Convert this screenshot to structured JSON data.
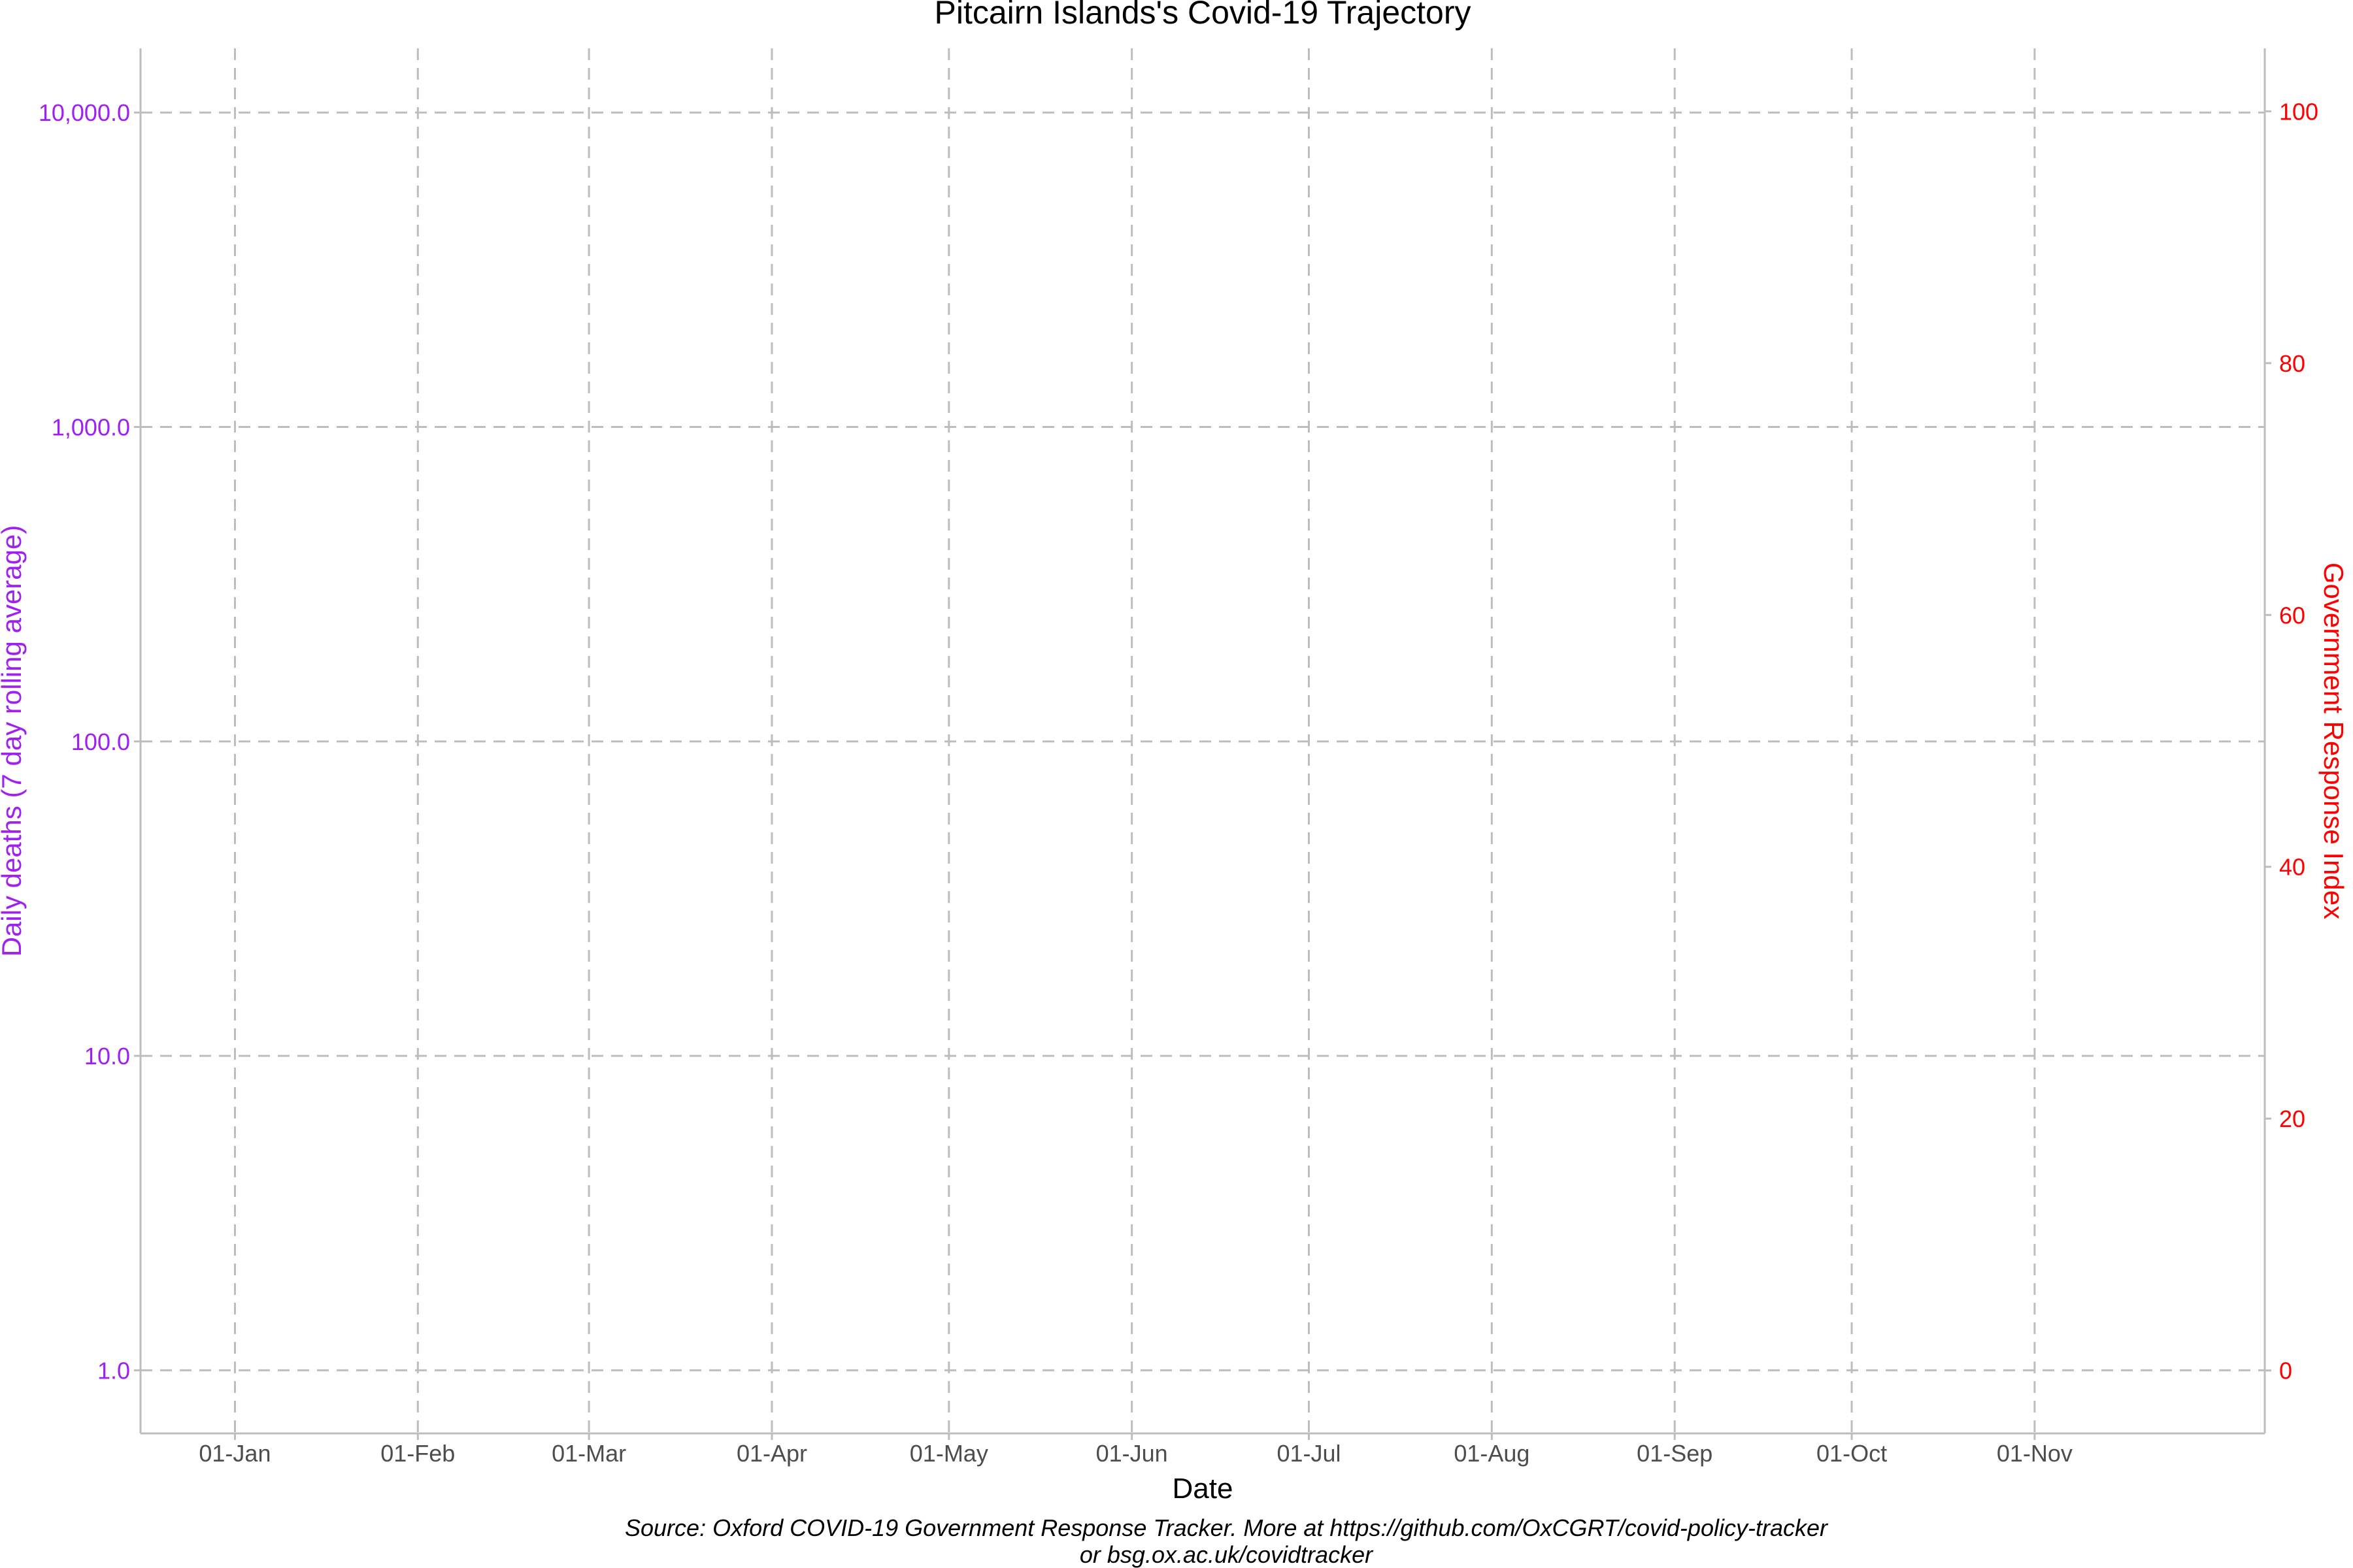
{
  "chart_data": {
    "type": "line",
    "title": "Pitcairn Islands's Covid-19 Trajectory",
    "xlabel": "Date",
    "ylabel_left": "Daily deaths (7 day rolling average)",
    "ylabel_right": "Government Response Index",
    "x_ticks": [
      "01-Jan",
      "01-Feb",
      "01-Mar",
      "01-Apr",
      "01-May",
      "01-Jun",
      "01-Jul",
      "01-Aug",
      "01-Sep",
      "01-Oct",
      "01-Nov"
    ],
    "x_tick_dates": [
      "2020-01-01",
      "2020-02-01",
      "2020-03-01",
      "2020-04-01",
      "2020-05-01",
      "2020-06-01",
      "2020-07-01",
      "2020-08-01",
      "2020-09-01",
      "2020-10-01",
      "2020-11-01"
    ],
    "xlim": [
      "2019-12-16",
      "2020-12-10"
    ],
    "y_left": {
      "scale": "log10",
      "ticks": [
        1,
        10,
        100,
        1000,
        10000
      ],
      "tick_labels": [
        "1.0",
        "10.0",
        "100.0",
        "1,000.0",
        "10,000.0"
      ],
      "lim": [
        0.63,
        16000
      ],
      "color": "#a020f0"
    },
    "y_right": {
      "scale": "linear",
      "ticks": [
        0,
        20,
        40,
        60,
        80,
        100
      ],
      "tick_labels": [
        "0",
        "20",
        "40",
        "60",
        "80",
        "100"
      ],
      "lim": [
        -5,
        105
      ],
      "color": "#ff0000"
    },
    "grid": true,
    "grid_style": "dashed",
    "series": [],
    "caption": [
      "Source: Oxford COVID-19 Government Response Tracker. More at https://github.com/OxCGRT/covid-policy-tracker",
      "or bsg.ox.ac.uk/covidtracker"
    ]
  }
}
